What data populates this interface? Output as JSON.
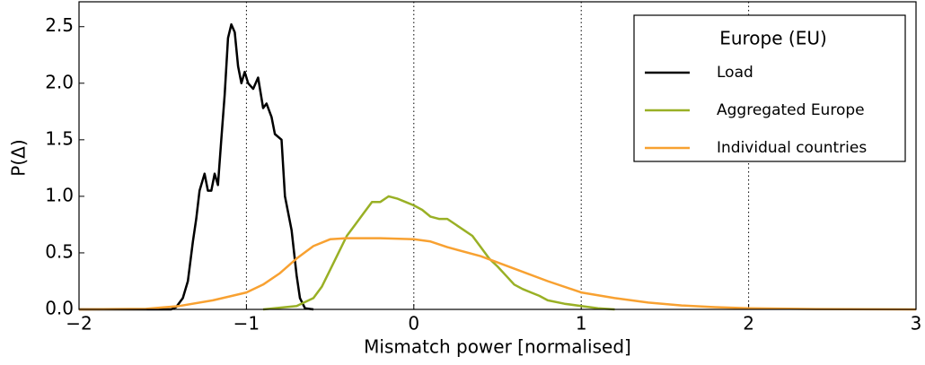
{
  "chart_data": {
    "type": "line",
    "xlabel": "Mismatch power [normalised]",
    "ylabel": "P(Δ)",
    "xlim": [
      -2,
      3
    ],
    "ylim": [
      0,
      2.72
    ],
    "xticks": [
      {
        "value": -2,
        "label": "−2"
      },
      {
        "value": -1,
        "label": "−1"
      },
      0,
      1,
      2,
      3
    ],
    "yticks": [
      {
        "value": 0,
        "label": "0.0"
      },
      0.5,
      {
        "value": 1,
        "label": "1.0"
      },
      1.5,
      {
        "value": 2,
        "label": "2.0"
      },
      2.5
    ],
    "grid": "x",
    "legend_title": "Europe (EU)",
    "legend": "upper right",
    "series": [
      {
        "name": "Load",
        "color": "#000000",
        "x": [
          -2,
          -1.45,
          -1.42,
          -1.38,
          -1.35,
          -1.32,
          -1.3,
          -1.28,
          -1.25,
          -1.23,
          -1.21,
          -1.19,
          -1.17,
          -1.15,
          -1.13,
          -1.11,
          -1.09,
          -1.07,
          -1.05,
          -1.03,
          -1.01,
          -0.99,
          -0.96,
          -0.93,
          -0.9,
          -0.88,
          -0.85,
          -0.83,
          -0.79,
          -0.77,
          -0.73,
          -0.7,
          -0.68,
          -0.65,
          -0.6
        ],
        "values": [
          0,
          0,
          0.02,
          0.1,
          0.25,
          0.6,
          0.8,
          1.05,
          1.2,
          1.05,
          1.05,
          1.2,
          1.1,
          1.5,
          1.9,
          2.4,
          2.52,
          2.45,
          2.15,
          2.0,
          2.1,
          2.0,
          1.95,
          2.05,
          1.78,
          1.82,
          1.7,
          1.55,
          1.5,
          1.0,
          0.7,
          0.3,
          0.1,
          0.01,
          0
        ]
      },
      {
        "name": "Aggregated Europe",
        "color": "#99b025",
        "x": [
          -0.9,
          -0.7,
          -0.6,
          -0.55,
          -0.5,
          -0.45,
          -0.4,
          -0.35,
          -0.3,
          -0.25,
          -0.2,
          -0.15,
          -0.1,
          -0.05,
          0,
          0.05,
          0.1,
          0.15,
          0.2,
          0.25,
          0.3,
          0.35,
          0.4,
          0.45,
          0.5,
          0.55,
          0.6,
          0.65,
          0.7,
          0.75,
          0.8,
          0.9,
          1.0,
          1.1,
          1.2
        ],
        "values": [
          0,
          0.03,
          0.1,
          0.2,
          0.35,
          0.5,
          0.65,
          0.75,
          0.85,
          0.95,
          0.95,
          1.0,
          0.98,
          0.95,
          0.92,
          0.88,
          0.82,
          0.8,
          0.8,
          0.75,
          0.7,
          0.65,
          0.55,
          0.45,
          0.38,
          0.3,
          0.22,
          0.18,
          0.15,
          0.12,
          0.08,
          0.05,
          0.03,
          0.01,
          0
        ]
      },
      {
        "name": "Individual countries",
        "color": "#f8a131",
        "x": [
          -2,
          -1.6,
          -1.4,
          -1.2,
          -1.0,
          -0.9,
          -0.8,
          -0.7,
          -0.6,
          -0.5,
          -0.4,
          -0.2,
          0,
          0.1,
          0.2,
          0.4,
          0.6,
          0.8,
          1.0,
          1.2,
          1.4,
          1.6,
          1.8,
          2.0,
          2.4,
          3
        ],
        "values": [
          0,
          0.005,
          0.03,
          0.08,
          0.15,
          0.22,
          0.32,
          0.45,
          0.56,
          0.62,
          0.63,
          0.63,
          0.62,
          0.6,
          0.55,
          0.47,
          0.36,
          0.25,
          0.15,
          0.1,
          0.06,
          0.035,
          0.02,
          0.01,
          0.003,
          0
        ]
      }
    ]
  }
}
